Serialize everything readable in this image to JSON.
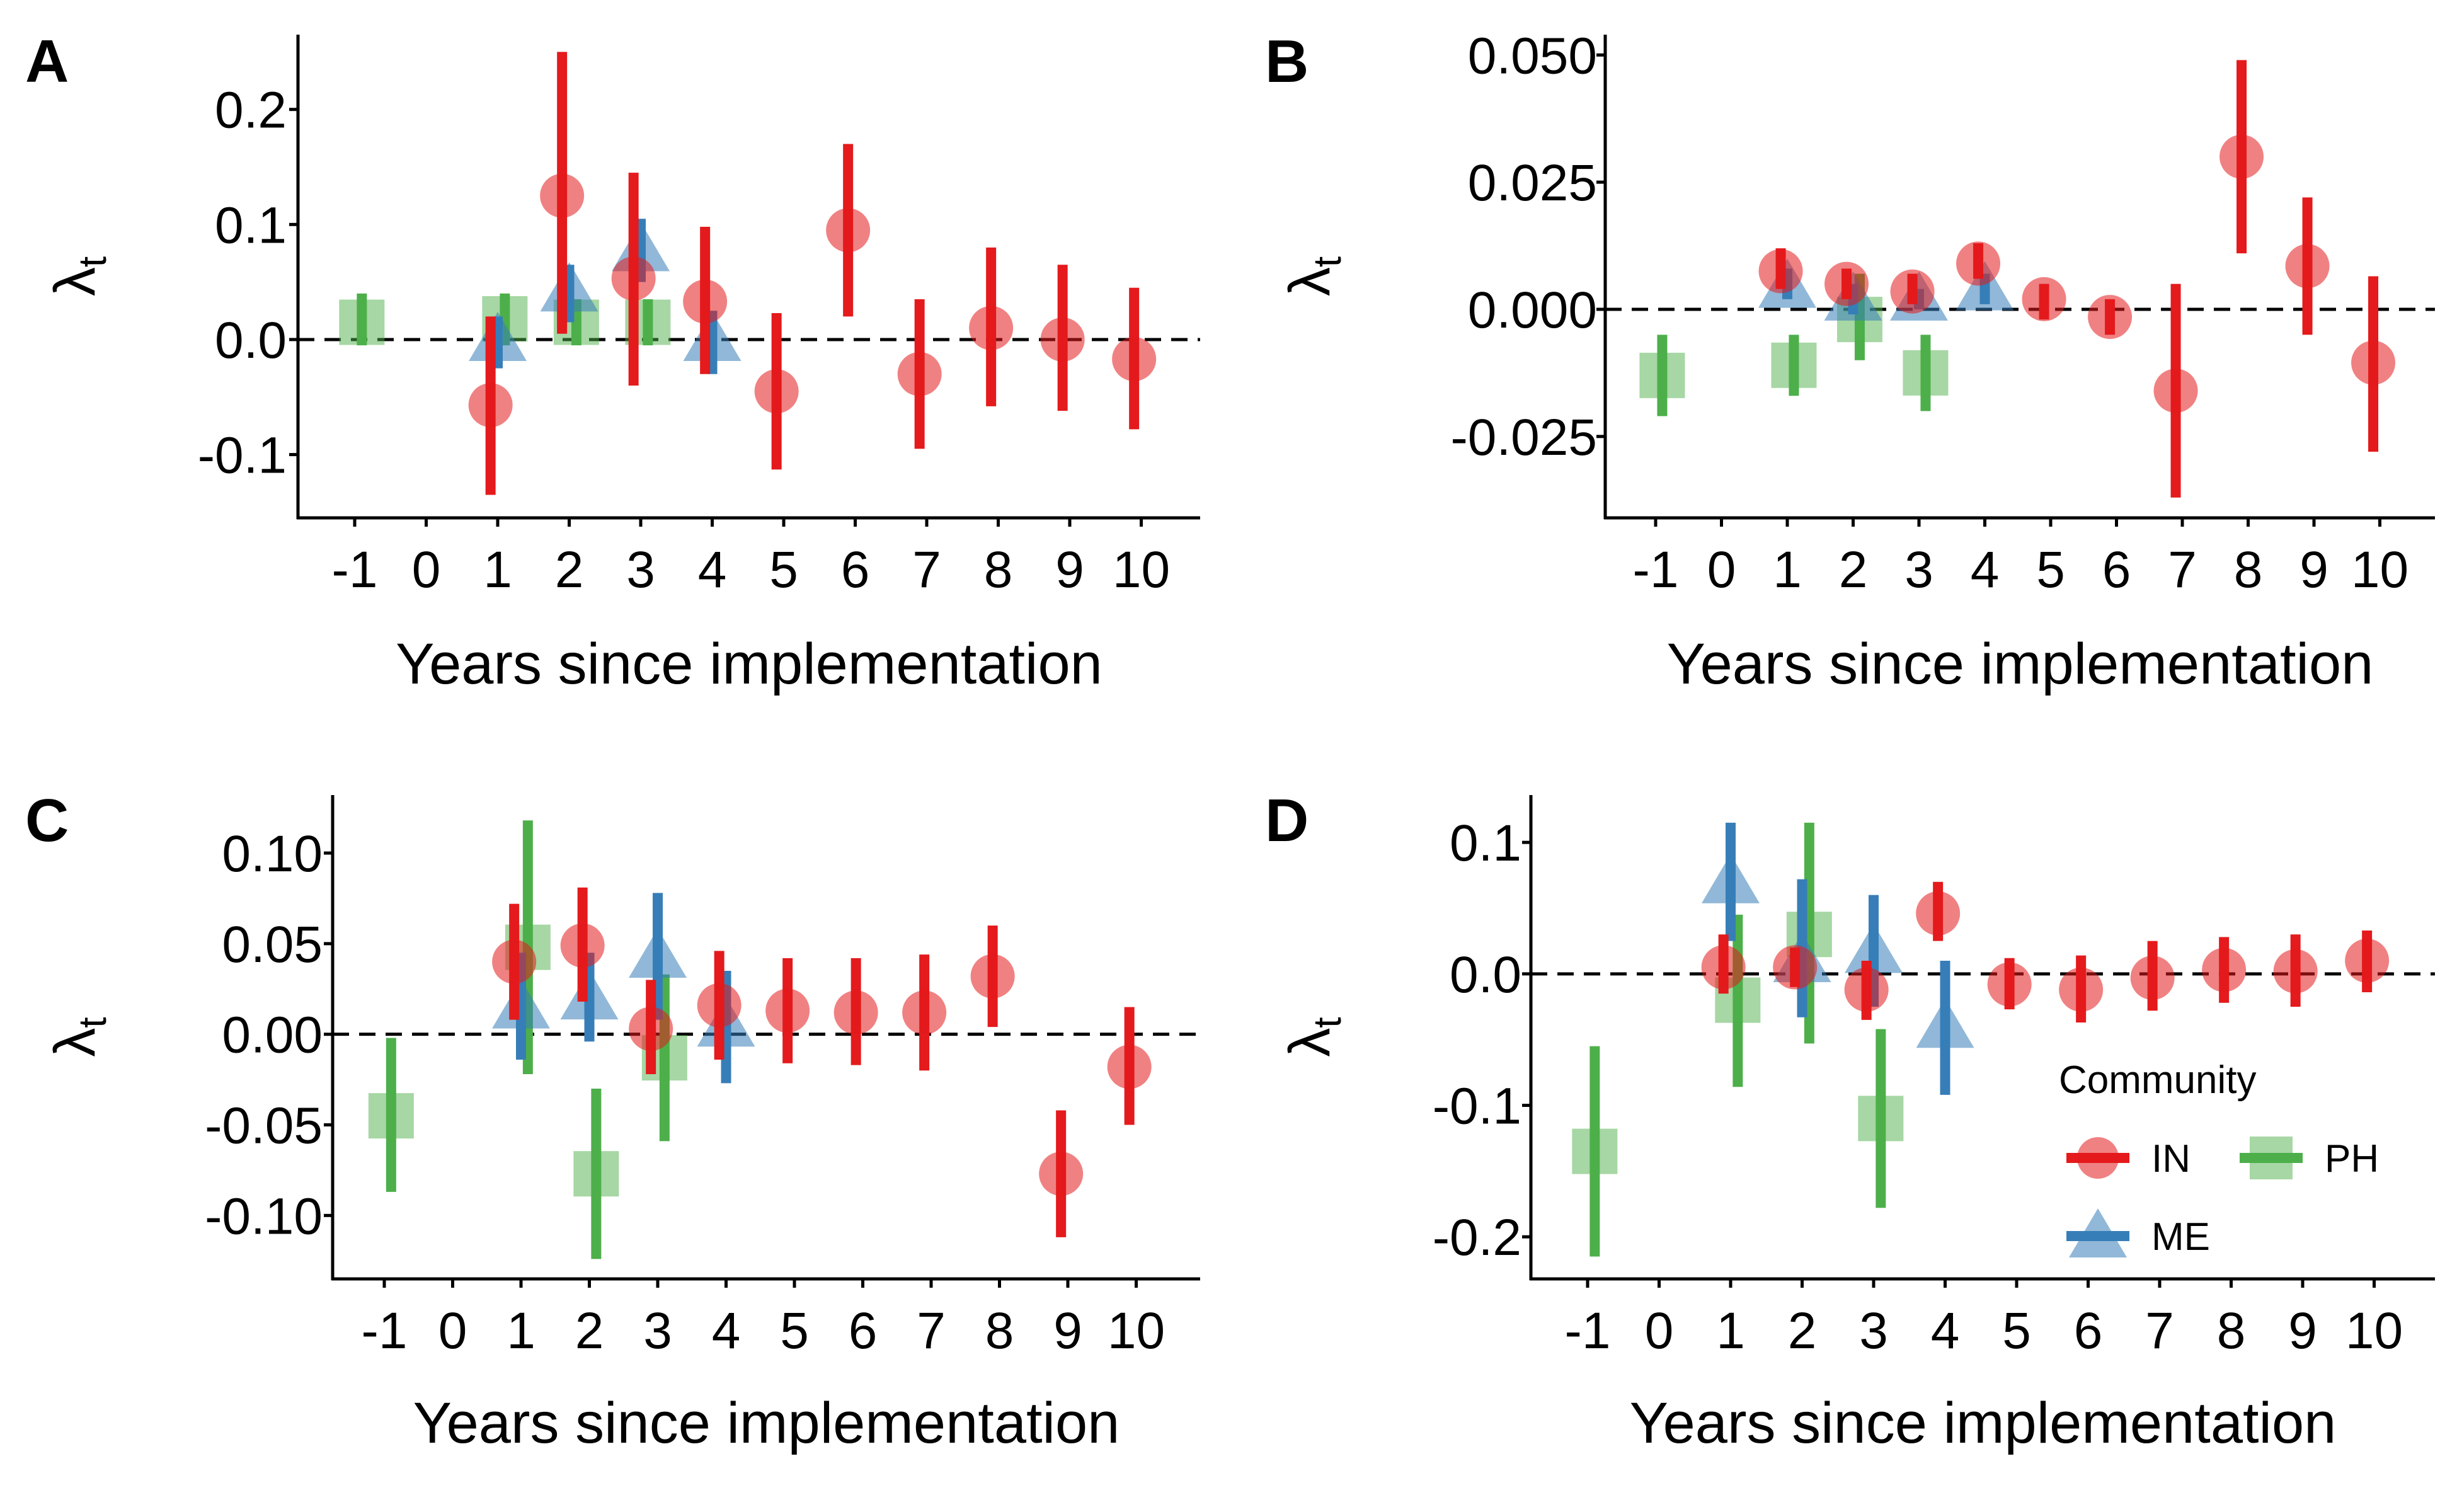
{
  "chart_data": [
    {
      "panel": "A",
      "type": "scatter",
      "xlabel": "Years since implementation",
      "ylabel": "λ",
      "ylabel_sub": "t",
      "x_ticks": [
        "-1",
        "0",
        "1",
        "2",
        "3",
        "4",
        "5",
        "6",
        "7",
        "8",
        "9",
        "10"
      ],
      "ylim": [
        -0.155,
        0.265
      ],
      "y_ticks": [
        {
          "v": 0.2,
          "l": "0.2"
        },
        {
          "v": 0.1,
          "l": "0.1"
        },
        {
          "v": 0.0,
          "l": "0.0"
        },
        {
          "v": -0.1,
          "l": "-0.1"
        }
      ],
      "reference_line": 0,
      "series": [
        {
          "name": "IN",
          "points": [
            {
              "x": 1,
              "y": -0.057,
              "lo": -0.135,
              "hi": 0.02
            },
            {
              "x": 2,
              "y": 0.125,
              "lo": 0.005,
              "hi": 0.25
            },
            {
              "x": 3,
              "y": 0.053,
              "lo": -0.04,
              "hi": 0.145
            },
            {
              "x": 4,
              "y": 0.033,
              "lo": -0.03,
              "hi": 0.098
            },
            {
              "x": 5,
              "y": -0.045,
              "lo": -0.113,
              "hi": 0.023
            },
            {
              "x": 6,
              "y": 0.095,
              "lo": 0.02,
              "hi": 0.17
            },
            {
              "x": 7,
              "y": -0.03,
              "lo": -0.095,
              "hi": 0.035
            },
            {
              "x": 8,
              "y": 0.01,
              "lo": -0.058,
              "hi": 0.08
            },
            {
              "x": 9,
              "y": 0.0,
              "lo": -0.062,
              "hi": 0.065
            },
            {
              "x": 10,
              "y": -0.017,
              "lo": -0.078,
              "hi": 0.045
            }
          ]
        },
        {
          "name": "ME",
          "points": [
            {
              "x": 1,
              "y": 0.0,
              "lo": -0.025,
              "hi": 0.02
            },
            {
              "x": 2,
              "y": 0.043,
              "lo": 0.015,
              "hi": 0.065
            },
            {
              "x": 3,
              "y": 0.078,
              "lo": 0.05,
              "hi": 0.105
            },
            {
              "x": 4,
              "y": 0.0,
              "lo": -0.03,
              "hi": 0.025
            }
          ]
        },
        {
          "name": "PH",
          "points": [
            {
              "x": -1,
              "y": 0.015,
              "lo": -0.005,
              "hi": 0.04
            },
            {
              "x": 1,
              "y": 0.018,
              "lo": -0.005,
              "hi": 0.04
            },
            {
              "x": 2,
              "y": 0.015,
              "lo": -0.005,
              "hi": 0.035
            },
            {
              "x": 3,
              "y": 0.015,
              "lo": -0.005,
              "hi": 0.035
            }
          ]
        }
      ]
    },
    {
      "panel": "B",
      "type": "scatter",
      "xlabel": "Years since implementation",
      "ylabel": "λ",
      "ylabel_sub": "t",
      "x_ticks": [
        "-1",
        "0",
        "1",
        "2",
        "3",
        "4",
        "5",
        "6",
        "7",
        "8",
        "9",
        "10"
      ],
      "ylim": [
        -0.041,
        0.054
      ],
      "y_ticks": [
        {
          "v": 0.05,
          "l": "0.050"
        },
        {
          "v": 0.025,
          "l": "0.025"
        },
        {
          "v": 0.0,
          "l": "0.000"
        },
        {
          "v": -0.025,
          "l": "-0.025"
        }
      ],
      "reference_line": 0,
      "series": [
        {
          "name": "IN",
          "points": [
            {
              "x": 1,
              "y": 0.0075,
              "lo": 0.004,
              "hi": 0.012
            },
            {
              "x": 2,
              "y": 0.005,
              "lo": 0.002,
              "hi": 0.008
            },
            {
              "x": 3,
              "y": 0.0035,
              "lo": 0.001,
              "hi": 0.007
            },
            {
              "x": 4,
              "y": 0.009,
              "lo": 0.006,
              "hi": 0.013
            },
            {
              "x": 5,
              "y": 0.002,
              "lo": -0.002,
              "hi": 0.005
            },
            {
              "x": 6,
              "y": -0.0015,
              "lo": -0.005,
              "hi": 0.002
            },
            {
              "x": 7,
              "y": -0.016,
              "lo": -0.037,
              "hi": 0.005
            },
            {
              "x": 8,
              "y": 0.03,
              "lo": 0.011,
              "hi": 0.049
            },
            {
              "x": 9,
              "y": 0.0085,
              "lo": -0.005,
              "hi": 0.022
            },
            {
              "x": 10,
              "y": -0.0105,
              "lo": -0.028,
              "hi": 0.0065
            }
          ]
        },
        {
          "name": "ME",
          "points": [
            {
              "x": 1,
              "y": 0.0045,
              "lo": 0.002,
              "hi": 0.008
            },
            {
              "x": 2,
              "y": 0.002,
              "lo": -0.001,
              "hi": 0.005
            },
            {
              "x": 3,
              "y": 0.002,
              "lo": 0.0,
              "hi": 0.004
            },
            {
              "x": 4,
              "y": 0.004,
              "lo": 0.001,
              "hi": 0.007
            }
          ]
        },
        {
          "name": "PH",
          "points": [
            {
              "x": -1,
              "y": -0.013,
              "lo": -0.021,
              "hi": -0.005
            },
            {
              "x": 1,
              "y": -0.011,
              "lo": -0.017,
              "hi": -0.005
            },
            {
              "x": 2,
              "y": -0.002,
              "lo": -0.01,
              "hi": 0.007
            },
            {
              "x": 3,
              "y": -0.0125,
              "lo": -0.02,
              "hi": -0.005
            }
          ]
        }
      ]
    },
    {
      "panel": "C",
      "type": "scatter",
      "xlabel": "Years since implementation",
      "ylabel": "λ",
      "ylabel_sub": "t",
      "x_ticks": [
        "-1",
        "0",
        "1",
        "2",
        "3",
        "4",
        "5",
        "6",
        "7",
        "8",
        "9",
        "10"
      ],
      "ylim": [
        -0.135,
        0.132
      ],
      "y_ticks": [
        {
          "v": 0.1,
          "l": "0.10"
        },
        {
          "v": 0.05,
          "l": "0.05"
        },
        {
          "v": 0.0,
          "l": "0.00"
        },
        {
          "v": -0.05,
          "l": "-0.05"
        },
        {
          "v": -0.1,
          "l": "-0.10"
        }
      ],
      "reference_line": 0,
      "series": [
        {
          "name": "IN",
          "points": [
            {
              "x": 1,
              "y": 0.04,
              "lo": 0.008,
              "hi": 0.072
            },
            {
              "x": 2,
              "y": 0.049,
              "lo": 0.018,
              "hi": 0.081
            },
            {
              "x": 3,
              "y": 0.003,
              "lo": -0.022,
              "hi": 0.03
            },
            {
              "x": 4,
              "y": 0.016,
              "lo": -0.014,
              "hi": 0.046
            },
            {
              "x": 5,
              "y": 0.013,
              "lo": -0.016,
              "hi": 0.042
            },
            {
              "x": 6,
              "y": 0.012,
              "lo": -0.017,
              "hi": 0.042
            },
            {
              "x": 7,
              "y": 0.012,
              "lo": -0.02,
              "hi": 0.044
            },
            {
              "x": 8,
              "y": 0.032,
              "lo": 0.004,
              "hi": 0.06
            },
            {
              "x": 9,
              "y": -0.077,
              "lo": -0.112,
              "hi": -0.042
            },
            {
              "x": 10,
              "y": -0.018,
              "lo": -0.05,
              "hi": 0.015
            }
          ]
        },
        {
          "name": "ME",
          "points": [
            {
              "x": 1,
              "y": 0.015,
              "lo": -0.014,
              "hi": 0.045
            },
            {
              "x": 2,
              "y": 0.02,
              "lo": -0.004,
              "hi": 0.045
            },
            {
              "x": 3,
              "y": 0.043,
              "lo": 0.008,
              "hi": 0.078
            },
            {
              "x": 4,
              "y": 0.005,
              "lo": -0.027,
              "hi": 0.035
            }
          ]
        },
        {
          "name": "PH",
          "points": [
            {
              "x": -1,
              "y": -0.045,
              "lo": -0.087,
              "hi": -0.002
            },
            {
              "x": 1,
              "y": 0.048,
              "lo": -0.022,
              "hi": 0.118
            },
            {
              "x": 2,
              "y": -0.077,
              "lo": -0.124,
              "hi": -0.03
            },
            {
              "x": 3,
              "y": -0.013,
              "lo": -0.059,
              "hi": 0.033
            }
          ]
        }
      ]
    },
    {
      "panel": "D",
      "type": "scatter",
      "xlabel": "Years since implementation",
      "ylabel": "λ",
      "ylabel_sub": "t",
      "x_ticks": [
        "-1",
        "0",
        "1",
        "2",
        "3",
        "4",
        "5",
        "6",
        "7",
        "8",
        "9",
        "10"
      ],
      "ylim": [
        -0.232,
        0.136
      ],
      "y_ticks": [
        {
          "v": 0.1,
          "l": "0.1"
        },
        {
          "v": 0.0,
          "l": "0.0"
        },
        {
          "v": -0.1,
          "l": "-0.1"
        },
        {
          "v": -0.2,
          "l": "-0.2"
        }
      ],
      "reference_line": 0,
      "series": [
        {
          "name": "IN",
          "points": [
            {
              "x": 1,
              "y": 0.005,
              "lo": -0.015,
              "hi": 0.03
            },
            {
              "x": 2,
              "y": 0.005,
              "lo": -0.01,
              "hi": 0.02
            },
            {
              "x": 3,
              "y": -0.012,
              "lo": -0.035,
              "hi": 0.01
            },
            {
              "x": 4,
              "y": 0.046,
              "lo": 0.025,
              "hi": 0.07
            },
            {
              "x": 5,
              "y": -0.008,
              "lo": -0.027,
              "hi": 0.012
            },
            {
              "x": 6,
              "y": -0.012,
              "lo": -0.037,
              "hi": 0.014
            },
            {
              "x": 7,
              "y": -0.003,
              "lo": -0.028,
              "hi": 0.025
            },
            {
              "x": 8,
              "y": 0.003,
              "lo": -0.022,
              "hi": 0.028
            },
            {
              "x": 9,
              "y": 0.002,
              "lo": -0.025,
              "hi": 0.03
            },
            {
              "x": 10,
              "y": 0.01,
              "lo": -0.014,
              "hi": 0.033
            }
          ]
        },
        {
          "name": "ME",
          "points": [
            {
              "x": 1,
              "y": 0.07,
              "lo": 0.025,
              "hi": 0.115
            },
            {
              "x": 2,
              "y": 0.01,
              "lo": -0.033,
              "hi": 0.072
            },
            {
              "x": 3,
              "y": 0.017,
              "lo": -0.025,
              "hi": 0.06
            },
            {
              "x": 4,
              "y": -0.04,
              "lo": -0.092,
              "hi": 0.01
            }
          ]
        },
        {
          "name": "PH",
          "points": [
            {
              "x": -1,
              "y": -0.135,
              "lo": -0.215,
              "hi": -0.055
            },
            {
              "x": 1,
              "y": -0.02,
              "lo": -0.086,
              "hi": 0.045
            },
            {
              "x": 2,
              "y": 0.03,
              "lo": -0.053,
              "hi": 0.115
            },
            {
              "x": 3,
              "y": -0.11,
              "lo": -0.178,
              "hi": -0.042
            }
          ]
        }
      ]
    }
  ],
  "legend": {
    "title": "Community",
    "placement": "bottom-right of panel D",
    "entries": [
      {
        "key": "IN",
        "label": "IN",
        "shape": "circle"
      },
      {
        "key": "PH",
        "label": "PH",
        "shape": "square"
      },
      {
        "key": "ME",
        "label": "ME",
        "shape": "triangle"
      }
    ]
  },
  "colors": {
    "IN": "#e41a1c",
    "ME": "#377eb8",
    "PH": "#4daf4a",
    "axis": "#000000"
  },
  "series_offsets_years": {
    "IN": -0.1,
    "ME": 0.0,
    "PH": 0.1
  }
}
